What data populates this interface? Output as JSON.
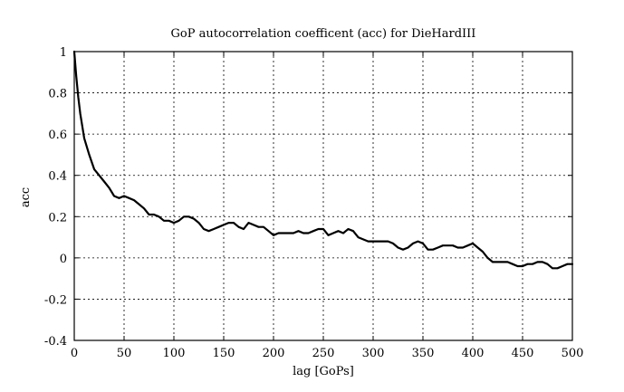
{
  "chart_data": {
    "type": "line",
    "title": "GoP autocorrelation coefficent (acc) for DieHardIII",
    "xlabel": "lag [GoPs]",
    "ylabel": "acc",
    "xlim": [
      0,
      500
    ],
    "ylim": [
      -0.4,
      1
    ],
    "xticks": [
      0,
      50,
      100,
      150,
      200,
      250,
      300,
      350,
      400,
      450,
      500
    ],
    "yticks": [
      -0.4,
      -0.2,
      0,
      0.2,
      0.4,
      0.6,
      0.8,
      1
    ],
    "xtick_labels": [
      "0",
      "50",
      "100",
      "150",
      "200",
      "250",
      "300",
      "350",
      "400",
      "450",
      "500"
    ],
    "ytick_labels": [
      "-0.4",
      "-0.2",
      "0",
      "0.2",
      "0.4",
      "0.6",
      "0.8",
      "1"
    ],
    "grid": true,
    "series": [
      {
        "color": "#000000",
        "x": [
          0,
          2,
          4,
          6,
          8,
          10,
          15,
          20,
          25,
          30,
          35,
          40,
          45,
          50,
          55,
          60,
          65,
          70,
          75,
          80,
          85,
          90,
          95,
          100,
          105,
          110,
          115,
          120,
          125,
          130,
          135,
          140,
          145,
          150,
          155,
          160,
          165,
          170,
          175,
          180,
          185,
          190,
          195,
          200,
          205,
          210,
          215,
          220,
          225,
          230,
          235,
          240,
          245,
          250,
          255,
          260,
          265,
          270,
          275,
          280,
          285,
          290,
          295,
          300,
          305,
          310,
          315,
          320,
          325,
          330,
          335,
          340,
          345,
          350,
          355,
          360,
          365,
          370,
          375,
          380,
          385,
          390,
          395,
          400,
          405,
          410,
          415,
          420,
          425,
          430,
          435,
          440,
          445,
          450,
          455,
          460,
          465,
          470,
          475,
          480,
          485,
          490,
          495,
          500
        ],
        "values": [
          1.0,
          0.88,
          0.78,
          0.7,
          0.64,
          0.58,
          0.5,
          0.43,
          0.4,
          0.37,
          0.34,
          0.3,
          0.29,
          0.3,
          0.29,
          0.28,
          0.26,
          0.24,
          0.21,
          0.21,
          0.2,
          0.18,
          0.18,
          0.17,
          0.18,
          0.2,
          0.2,
          0.19,
          0.17,
          0.14,
          0.13,
          0.14,
          0.15,
          0.16,
          0.17,
          0.17,
          0.15,
          0.14,
          0.17,
          0.16,
          0.15,
          0.15,
          0.13,
          0.11,
          0.12,
          0.12,
          0.12,
          0.12,
          0.13,
          0.12,
          0.12,
          0.13,
          0.14,
          0.14,
          0.11,
          0.12,
          0.13,
          0.12,
          0.14,
          0.13,
          0.1,
          0.09,
          0.08,
          0.08,
          0.08,
          0.08,
          0.08,
          0.07,
          0.05,
          0.04,
          0.05,
          0.07,
          0.08,
          0.07,
          0.04,
          0.04,
          0.05,
          0.06,
          0.06,
          0.06,
          0.05,
          0.05,
          0.06,
          0.07,
          0.05,
          0.03,
          0.0,
          -0.02,
          -0.02,
          -0.02,
          -0.02,
          -0.03,
          -0.04,
          -0.04,
          -0.03,
          -0.03,
          -0.02,
          -0.02,
          -0.03,
          -0.05,
          -0.05,
          -0.04,
          -0.03,
          -0.03
        ]
      }
    ]
  }
}
